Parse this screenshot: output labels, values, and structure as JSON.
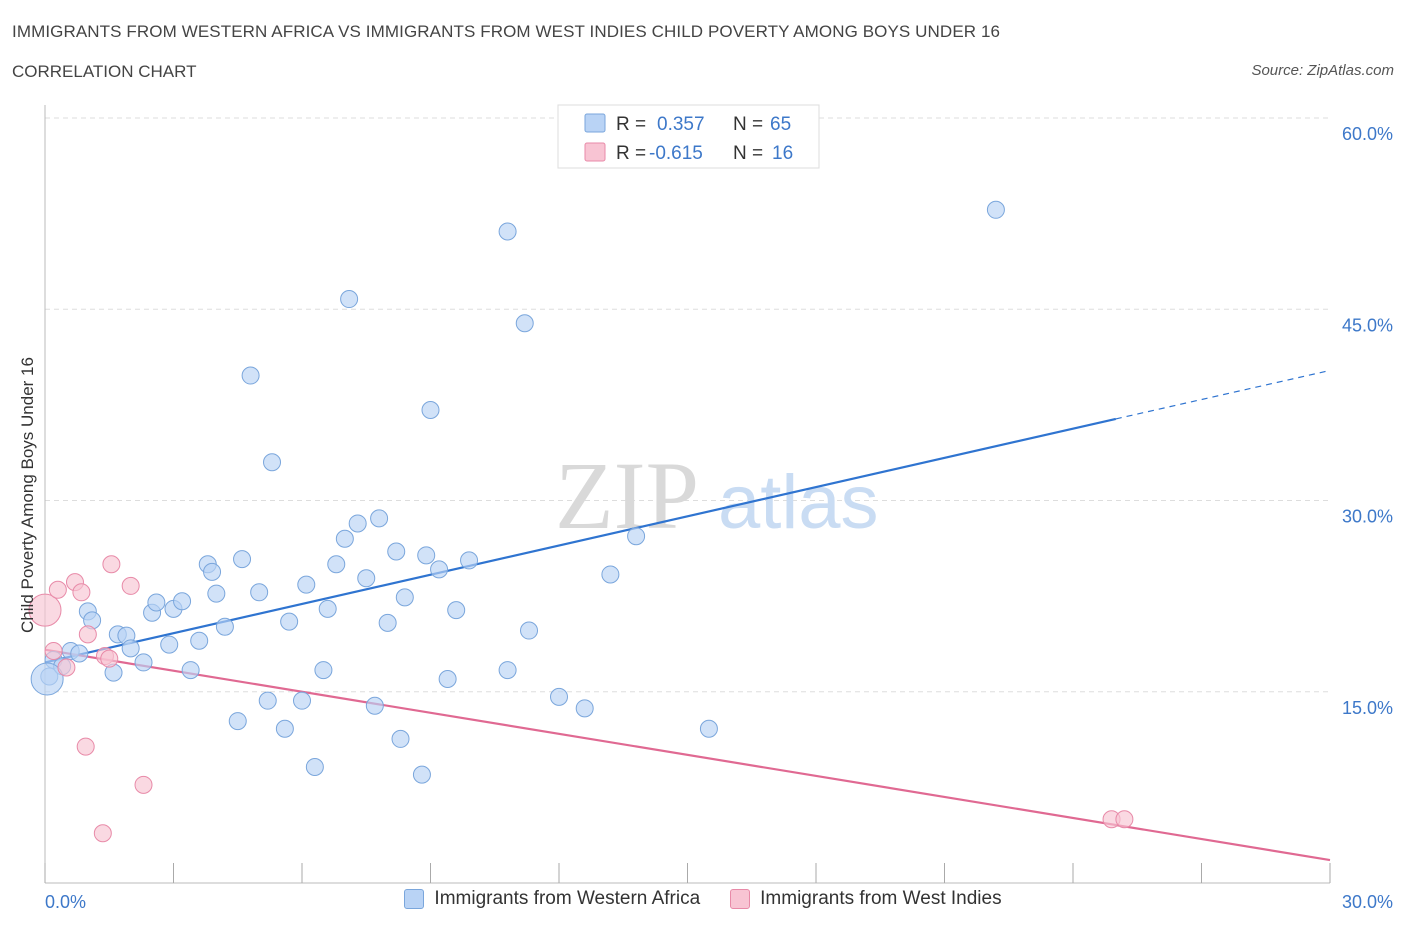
{
  "header": {
    "title": "IMMIGRANTS FROM WESTERN AFRICA VS IMMIGRANTS FROM WEST INDIES CHILD POVERTY AMONG BOYS UNDER 16",
    "subtitle": "CORRELATION CHART",
    "source": "Source: ZipAtlas.com"
  },
  "watermark": {
    "zip": "ZIP",
    "atlas": "atlas"
  },
  "legend_box": [
    {
      "r_label": "R =",
      "r_value": "0.357",
      "n_label": "N =",
      "n_value": "65"
    },
    {
      "r_label": "R =",
      "r_value": "-0.615",
      "n_label": "N =",
      "n_value": "16"
    }
  ],
  "colors": {
    "blue_fill": "#b9d3f5",
    "blue_stroke": "#7aa6dc",
    "blue_line": "#2f74d0",
    "pink_fill": "#f8c4d3",
    "pink_stroke": "#e88aa8",
    "pink_line": "#e06992",
    "tick_label": "#3d78c9",
    "grid": "#dddddd"
  },
  "chart_data": {
    "type": "scatter",
    "ylabel": "Child Poverty Among Boys Under 16",
    "xlim": [
      0,
      30
    ],
    "ylim": [
      0,
      60
    ],
    "x_tick_labels": [
      {
        "value": 0,
        "label": "0.0%"
      },
      {
        "value": 30,
        "label": "30.0%"
      }
    ],
    "y_tick_labels": [
      {
        "value": 60,
        "label": "60.0%"
      },
      {
        "value": 45,
        "label": "45.0%"
      },
      {
        "value": 30,
        "label": "30.0%"
      },
      {
        "value": 15,
        "label": "15.0%"
      }
    ],
    "grid": true,
    "series": [
      {
        "name": "Immigrants from Western Africa",
        "color": "#b9d3f5",
        "points": [
          [
            0.1,
            16.2
          ],
          [
            0.2,
            17.5
          ],
          [
            0.4,
            17.0
          ],
          [
            0.6,
            18.2
          ],
          [
            0.8,
            18.0
          ],
          [
            1.0,
            21.3
          ],
          [
            1.1,
            20.6
          ],
          [
            1.6,
            16.5
          ],
          [
            1.7,
            19.5
          ],
          [
            1.9,
            19.4
          ],
          [
            2.0,
            18.4
          ],
          [
            2.3,
            17.3
          ],
          [
            2.5,
            21.2
          ],
          [
            2.6,
            22.0
          ],
          [
            2.9,
            18.7
          ],
          [
            3.0,
            21.5
          ],
          [
            3.2,
            22.1
          ],
          [
            3.4,
            16.7
          ],
          [
            3.6,
            19.0
          ],
          [
            3.8,
            25.0
          ],
          [
            3.9,
            24.4
          ],
          [
            4.0,
            22.7
          ],
          [
            4.2,
            20.1
          ],
          [
            4.5,
            12.7
          ],
          [
            4.6,
            25.4
          ],
          [
            4.8,
            39.8
          ],
          [
            5.0,
            22.8
          ],
          [
            5.2,
            14.3
          ],
          [
            5.3,
            33.0
          ],
          [
            5.6,
            12.1
          ],
          [
            5.7,
            20.5
          ],
          [
            6.0,
            14.3
          ],
          [
            6.1,
            23.4
          ],
          [
            6.3,
            9.1
          ],
          [
            6.5,
            16.7
          ],
          [
            6.6,
            21.5
          ],
          [
            6.8,
            25.0
          ],
          [
            7.0,
            27.0
          ],
          [
            7.1,
            45.8
          ],
          [
            7.3,
            28.2
          ],
          [
            7.5,
            23.9
          ],
          [
            7.7,
            13.9
          ],
          [
            7.8,
            28.6
          ],
          [
            8.0,
            20.4
          ],
          [
            8.2,
            26.0
          ],
          [
            8.3,
            11.3
          ],
          [
            8.4,
            22.4
          ],
          [
            8.8,
            8.5
          ],
          [
            8.9,
            25.7
          ],
          [
            9.0,
            37.1
          ],
          [
            9.2,
            24.6
          ],
          [
            9.4,
            16.0
          ],
          [
            9.6,
            21.4
          ],
          [
            9.9,
            25.3
          ],
          [
            10.8,
            16.7
          ],
          [
            10.8,
            51.1
          ],
          [
            11.2,
            43.9
          ],
          [
            11.3,
            19.8
          ],
          [
            12.0,
            14.6
          ],
          [
            12.6,
            13.7
          ],
          [
            13.2,
            24.2
          ],
          [
            13.8,
            27.2
          ],
          [
            15.5,
            12.1
          ],
          [
            22.2,
            52.8
          ],
          [
            0.05,
            16.0
          ]
        ]
      },
      {
        "name": "Immigrants from West Indies",
        "color": "#f8c4d3",
        "points": [
          [
            0.0,
            21.4
          ],
          [
            0.2,
            18.2
          ],
          [
            0.3,
            23.0
          ],
          [
            0.5,
            16.9
          ],
          [
            0.7,
            23.6
          ],
          [
            0.85,
            22.8
          ],
          [
            0.95,
            10.7
          ],
          [
            1.0,
            19.5
          ],
          [
            1.35,
            3.9
          ],
          [
            1.4,
            17.8
          ],
          [
            1.5,
            17.6
          ],
          [
            1.55,
            25.0
          ],
          [
            2.0,
            23.3
          ],
          [
            2.3,
            7.7
          ],
          [
            24.9,
            5.0
          ],
          [
            25.2,
            5.0
          ]
        ]
      }
    ],
    "trend_lines": [
      {
        "series": "Immigrants from Western Africa",
        "x0": 0,
        "y0": 17.3,
        "x1": 25.0,
        "y1": 36.4,
        "dashed_to_x": 30,
        "dashed_to_y": 40.2
      },
      {
        "series": "Immigrants from West Indies",
        "x0": 0,
        "y0": 18.3,
        "x1": 30,
        "y1": 1.8
      }
    ]
  }
}
